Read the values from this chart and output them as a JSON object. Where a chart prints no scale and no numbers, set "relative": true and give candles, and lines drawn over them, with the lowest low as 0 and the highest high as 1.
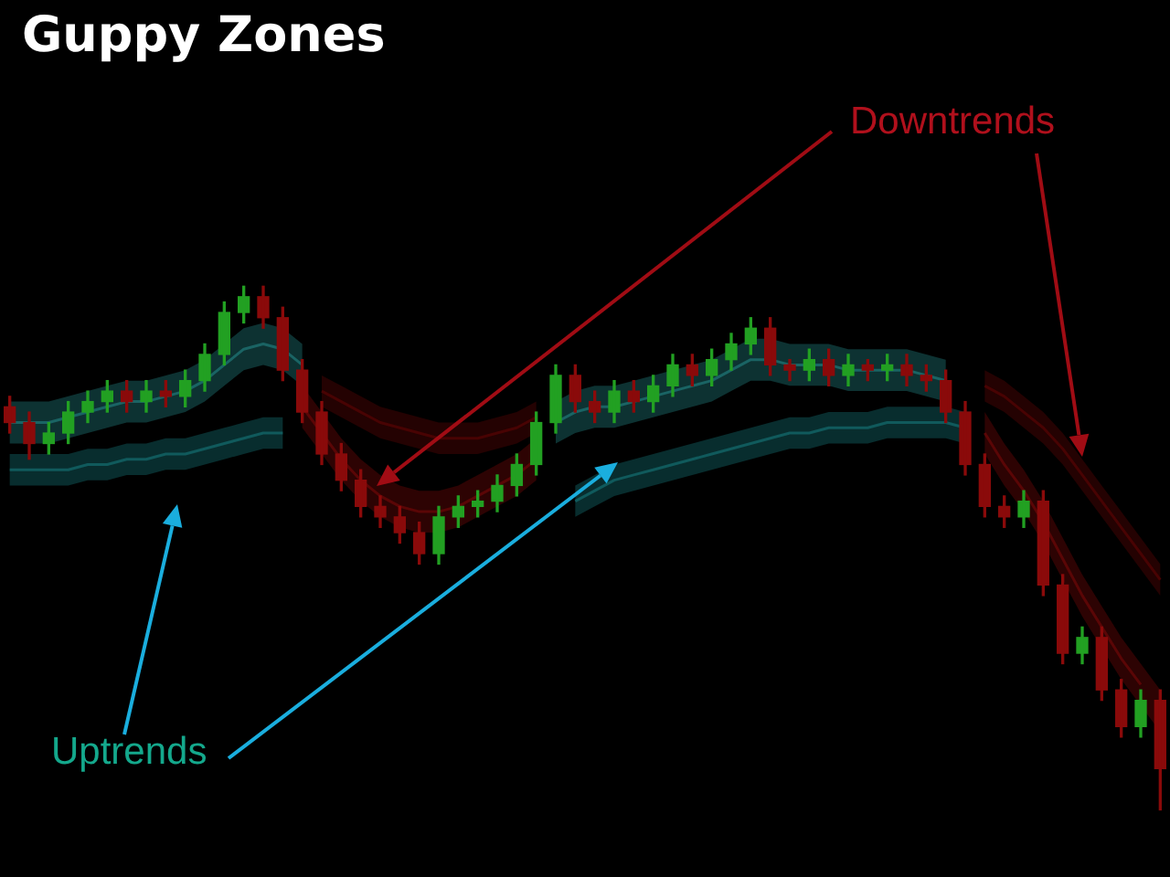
{
  "chart_data": {
    "type": "candlestick",
    "title": "Guppy Zones",
    "relative": true,
    "legend": false,
    "annotations": [
      "Downtrends",
      "Uptrends"
    ],
    "categories": [
      null,
      null,
      null,
      null,
      null,
      null,
      null,
      null,
      null,
      null,
      null,
      null,
      null,
      null,
      null,
      null,
      null,
      null,
      null,
      null,
      null,
      null,
      null,
      null,
      null,
      null,
      null,
      null,
      null,
      null,
      null,
      null,
      null,
      null,
      null,
      null,
      null,
      null,
      null,
      null,
      null,
      null,
      null,
      null,
      null,
      null,
      null,
      null,
      null,
      null,
      null,
      null,
      null,
      null,
      null,
      null,
      null,
      null,
      null,
      null
    ],
    "ohlc": [
      [
        0.77,
        0.79,
        0.72,
        0.74
      ],
      [
        0.74,
        0.76,
        0.67,
        0.7
      ],
      [
        0.7,
        0.74,
        0.68,
        0.72
      ],
      [
        0.72,
        0.78,
        0.7,
        0.76
      ],
      [
        0.76,
        0.8,
        0.74,
        0.78
      ],
      [
        0.78,
        0.82,
        0.76,
        0.8
      ],
      [
        0.8,
        0.82,
        0.76,
        0.78
      ],
      [
        0.78,
        0.82,
        0.76,
        0.8
      ],
      [
        0.8,
        0.82,
        0.77,
        0.79
      ],
      [
        0.79,
        0.84,
        0.77,
        0.82
      ],
      [
        0.82,
        0.89,
        0.8,
        0.87
      ],
      [
        0.87,
        0.97,
        0.85,
        0.95
      ],
      [
        0.95,
        1.0,
        0.93,
        0.98
      ],
      [
        0.98,
        1.0,
        0.92,
        0.94
      ],
      [
        0.94,
        0.96,
        0.82,
        0.84
      ],
      [
        0.84,
        0.86,
        0.74,
        0.76
      ],
      [
        0.76,
        0.78,
        0.66,
        0.68
      ],
      [
        0.68,
        0.7,
        0.61,
        0.63
      ],
      [
        0.63,
        0.65,
        0.56,
        0.58
      ],
      [
        0.58,
        0.6,
        0.54,
        0.56
      ],
      [
        0.56,
        0.58,
        0.51,
        0.53
      ],
      [
        0.53,
        0.55,
        0.47,
        0.49
      ],
      [
        0.49,
        0.58,
        0.47,
        0.56
      ],
      [
        0.56,
        0.6,
        0.54,
        0.58
      ],
      [
        0.58,
        0.61,
        0.56,
        0.59
      ],
      [
        0.59,
        0.64,
        0.57,
        0.62
      ],
      [
        0.62,
        0.68,
        0.6,
        0.66
      ],
      [
        0.66,
        0.76,
        0.64,
        0.74
      ],
      [
        0.74,
        0.85,
        0.72,
        0.83
      ],
      [
        0.83,
        0.85,
        0.76,
        0.78
      ],
      [
        0.78,
        0.8,
        0.74,
        0.76
      ],
      [
        0.76,
        0.82,
        0.74,
        0.8
      ],
      [
        0.8,
        0.82,
        0.76,
        0.78
      ],
      [
        0.78,
        0.83,
        0.76,
        0.81
      ],
      [
        0.81,
        0.87,
        0.79,
        0.85
      ],
      [
        0.85,
        0.87,
        0.81,
        0.83
      ],
      [
        0.83,
        0.88,
        0.81,
        0.86
      ],
      [
        0.86,
        0.91,
        0.84,
        0.89
      ],
      [
        0.89,
        0.94,
        0.87,
        0.92
      ],
      [
        0.92,
        0.94,
        0.83,
        0.85
      ],
      [
        0.85,
        0.86,
        0.82,
        0.84
      ],
      [
        0.84,
        0.88,
        0.82,
        0.86
      ],
      [
        0.86,
        0.88,
        0.81,
        0.83
      ],
      [
        0.83,
        0.87,
        0.81,
        0.85
      ],
      [
        0.85,
        0.86,
        0.82,
        0.84
      ],
      [
        0.84,
        0.87,
        0.82,
        0.85
      ],
      [
        0.85,
        0.87,
        0.81,
        0.83
      ],
      [
        0.83,
        0.85,
        0.8,
        0.82
      ],
      [
        0.82,
        0.84,
        0.74,
        0.76
      ],
      [
        0.76,
        0.78,
        0.64,
        0.66
      ],
      [
        0.66,
        0.68,
        0.56,
        0.58
      ],
      [
        0.58,
        0.6,
        0.54,
        0.56
      ],
      [
        0.56,
        0.61,
        0.54,
        0.59
      ],
      [
        0.59,
        0.61,
        0.41,
        0.43
      ],
      [
        0.43,
        0.45,
        0.28,
        0.3
      ],
      [
        0.3,
        0.35,
        0.28,
        0.33
      ],
      [
        0.33,
        0.35,
        0.21,
        0.23
      ],
      [
        0.23,
        0.25,
        0.14,
        0.16
      ],
      [
        0.16,
        0.23,
        0.14,
        0.21
      ],
      [
        0.21,
        0.23,
        0.0,
        0.08
      ]
    ],
    "series": [
      {
        "type": "line",
        "color": "#1a6464",
        "values": [
          0.74,
          0.74,
          0.74,
          0.75,
          0.76,
          0.77,
          0.78,
          0.78,
          0.79,
          0.8,
          0.82,
          0.85,
          0.88,
          0.89,
          0.88,
          0.85,
          null,
          null,
          null,
          null,
          null,
          null,
          null,
          null,
          null,
          null,
          null,
          null,
          0.74,
          0.76,
          0.77,
          0.77,
          0.78,
          0.79,
          0.8,
          0.81,
          0.82,
          0.84,
          0.86,
          0.86,
          0.85,
          0.85,
          0.85,
          0.84,
          0.84,
          0.84,
          0.84,
          0.83,
          0.82,
          null,
          null,
          null,
          null,
          null,
          null,
          null,
          null,
          null,
          null,
          null
        ],
        "lower": [
          0.7,
          0.7,
          0.7,
          0.71,
          0.72,
          0.73,
          0.74,
          0.74,
          0.75,
          0.76,
          0.78,
          0.81,
          0.84,
          0.85,
          0.84,
          0.81,
          null,
          null,
          null,
          null,
          null,
          null,
          null,
          null,
          null,
          null,
          null,
          null,
          0.7,
          0.72,
          0.73,
          0.73,
          0.74,
          0.75,
          0.76,
          0.77,
          0.78,
          0.8,
          0.82,
          0.82,
          0.81,
          0.81,
          0.81,
          0.8,
          0.8,
          0.8,
          0.8,
          0.79,
          0.78,
          null,
          null,
          null,
          null,
          null,
          null,
          null,
          null,
          null,
          null,
          null
        ],
        "upper": [
          0.78,
          0.78,
          0.78,
          0.79,
          0.8,
          0.81,
          0.82,
          0.82,
          0.83,
          0.84,
          0.86,
          0.89,
          0.92,
          0.93,
          0.92,
          0.89,
          null,
          null,
          null,
          null,
          null,
          null,
          null,
          null,
          null,
          null,
          null,
          null,
          0.78,
          0.8,
          0.81,
          0.81,
          0.82,
          0.83,
          0.84,
          0.85,
          0.86,
          0.88,
          0.9,
          0.9,
          0.89,
          0.89,
          0.89,
          0.88,
          0.88,
          0.88,
          0.88,
          0.87,
          0.86,
          null,
          null,
          null,
          null,
          null,
          null,
          null,
          null,
          null,
          null,
          null
        ]
      },
      {
        "type": "line",
        "color": "#105a5c",
        "values": [
          0.65,
          0.65,
          0.65,
          0.65,
          0.66,
          0.66,
          0.67,
          0.67,
          0.68,
          0.68,
          0.69,
          0.7,
          0.71,
          0.72,
          0.72,
          null,
          null,
          null,
          null,
          null,
          null,
          null,
          null,
          null,
          null,
          null,
          null,
          null,
          null,
          0.59,
          0.61,
          0.63,
          0.64,
          0.65,
          0.66,
          0.67,
          0.68,
          0.69,
          0.7,
          0.71,
          0.72,
          0.72,
          0.73,
          0.73,
          0.73,
          0.74,
          0.74,
          0.74,
          0.74,
          0.73,
          null,
          null,
          null,
          null,
          null,
          null,
          null,
          null,
          null,
          null
        ],
        "lower": [
          0.62,
          0.62,
          0.62,
          0.62,
          0.63,
          0.63,
          0.64,
          0.64,
          0.65,
          0.65,
          0.66,
          0.67,
          0.68,
          0.69,
          0.69,
          null,
          null,
          null,
          null,
          null,
          null,
          null,
          null,
          null,
          null,
          null,
          null,
          null,
          null,
          0.56,
          0.58,
          0.6,
          0.61,
          0.62,
          0.63,
          0.64,
          0.65,
          0.66,
          0.67,
          0.68,
          0.69,
          0.69,
          0.7,
          0.7,
          0.7,
          0.71,
          0.71,
          0.71,
          0.71,
          0.7,
          null,
          null,
          null,
          null,
          null,
          null,
          null,
          null,
          null,
          null
        ],
        "upper": [
          0.68,
          0.68,
          0.68,
          0.68,
          0.69,
          0.69,
          0.7,
          0.7,
          0.71,
          0.71,
          0.72,
          0.73,
          0.74,
          0.75,
          0.75,
          null,
          null,
          null,
          null,
          null,
          null,
          null,
          null,
          null,
          null,
          null,
          null,
          null,
          null,
          0.62,
          0.64,
          0.66,
          0.67,
          0.68,
          0.69,
          0.7,
          0.71,
          0.72,
          0.73,
          0.74,
          0.75,
          0.75,
          0.76,
          0.76,
          0.76,
          0.77,
          0.77,
          0.77,
          0.77,
          0.76,
          null,
          null,
          null,
          null,
          null,
          null,
          null,
          null,
          null,
          null
        ]
      },
      {
        "type": "line",
        "color": "#5a0606",
        "values": [
          null,
          null,
          null,
          null,
          null,
          null,
          null,
          null,
          null,
          null,
          null,
          null,
          null,
          null,
          null,
          0.77,
          0.72,
          0.67,
          0.63,
          0.6,
          0.58,
          0.57,
          0.57,
          0.58,
          0.6,
          0.62,
          0.64,
          0.67,
          null,
          null,
          null,
          null,
          null,
          null,
          null,
          null,
          null,
          null,
          null,
          null,
          null,
          null,
          null,
          null,
          null,
          null,
          null,
          null,
          null,
          null,
          0.72,
          0.66,
          0.61,
          0.55,
          0.48,
          0.41,
          0.35,
          0.29,
          0.24,
          null
        ],
        "lower": [
          null,
          null,
          null,
          null,
          null,
          null,
          null,
          null,
          null,
          null,
          null,
          null,
          null,
          null,
          null,
          0.73,
          0.68,
          0.63,
          0.59,
          0.56,
          0.54,
          0.53,
          0.53,
          0.54,
          0.56,
          0.58,
          0.6,
          0.63,
          null,
          null,
          null,
          null,
          null,
          null,
          null,
          null,
          null,
          null,
          null,
          null,
          null,
          null,
          null,
          null,
          null,
          null,
          null,
          null,
          null,
          null,
          0.68,
          0.62,
          0.57,
          0.51,
          0.44,
          0.37,
          0.31,
          0.25,
          0.2,
          0.15
        ],
        "upper": [
          null,
          null,
          null,
          null,
          null,
          null,
          null,
          null,
          null,
          null,
          null,
          null,
          null,
          null,
          null,
          0.81,
          0.76,
          0.71,
          0.67,
          0.64,
          0.62,
          0.61,
          0.61,
          0.62,
          0.64,
          0.66,
          0.68,
          0.71,
          null,
          null,
          null,
          null,
          null,
          null,
          null,
          null,
          null,
          null,
          null,
          null,
          null,
          null,
          null,
          null,
          null,
          null,
          null,
          null,
          null,
          null,
          0.76,
          0.7,
          0.65,
          0.59,
          0.52,
          0.45,
          0.39,
          0.33,
          0.28,
          0.23
        ]
      },
      {
        "type": "line",
        "color": "#480303",
        "values": [
          null,
          null,
          null,
          null,
          null,
          null,
          null,
          null,
          null,
          null,
          null,
          null,
          null,
          null,
          null,
          null,
          0.8,
          0.78,
          0.76,
          0.74,
          0.73,
          0.72,
          0.71,
          0.71,
          0.71,
          0.72,
          0.73,
          0.75,
          null,
          null,
          null,
          null,
          null,
          null,
          null,
          null,
          null,
          null,
          null,
          null,
          null,
          null,
          null,
          null,
          null,
          null,
          null,
          null,
          null,
          null,
          0.81,
          0.79,
          0.76,
          0.73,
          0.69,
          0.64,
          0.59,
          0.54,
          0.49,
          0.44
        ],
        "lower": [
          null,
          null,
          null,
          null,
          null,
          null,
          null,
          null,
          null,
          null,
          null,
          null,
          null,
          null,
          null,
          null,
          0.77,
          0.75,
          0.73,
          0.71,
          0.7,
          0.69,
          0.68,
          0.68,
          0.68,
          0.69,
          0.7,
          0.72,
          null,
          null,
          null,
          null,
          null,
          null,
          null,
          null,
          null,
          null,
          null,
          null,
          null,
          null,
          null,
          null,
          null,
          null,
          null,
          null,
          null,
          null,
          0.78,
          0.76,
          0.73,
          0.7,
          0.66,
          0.61,
          0.56,
          0.51,
          0.46,
          0.41
        ],
        "upper": [
          null,
          null,
          null,
          null,
          null,
          null,
          null,
          null,
          null,
          null,
          null,
          null,
          null,
          null,
          null,
          null,
          0.83,
          0.81,
          0.79,
          0.77,
          0.76,
          0.75,
          0.74,
          0.74,
          0.74,
          0.75,
          0.76,
          0.78,
          null,
          null,
          null,
          null,
          null,
          null,
          null,
          null,
          null,
          null,
          null,
          null,
          null,
          null,
          null,
          null,
          null,
          null,
          null,
          null,
          null,
          null,
          0.84,
          0.82,
          0.79,
          0.76,
          0.72,
          0.67,
          0.62,
          0.57,
          0.52,
          0.47
        ]
      }
    ]
  }
}
